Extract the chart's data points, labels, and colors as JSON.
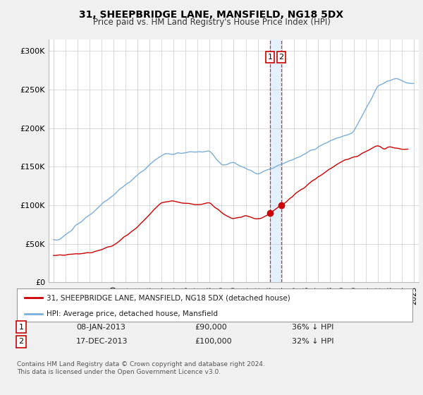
{
  "title": "31, SHEEPBRIDGE LANE, MANSFIELD, NG18 5DX",
  "subtitle": "Price paid vs. HM Land Registry's House Price Index (HPI)",
  "ylabel_ticks": [
    "£0",
    "£50K",
    "£100K",
    "£150K",
    "£200K",
    "£250K",
    "£300K"
  ],
  "ytick_values": [
    0,
    50000,
    100000,
    150000,
    200000,
    250000,
    300000
  ],
  "ylim": [
    0,
    315000
  ],
  "xlim_start": 1994.6,
  "xlim_end": 2025.4,
  "red_color": "#cc0000",
  "blue_color": "#7aaedb",
  "shade_color": "#ddeeff",
  "background_color": "#f0f0f0",
  "plot_bg_color": "#ffffff",
  "annotation1_date": "08-JAN-2013",
  "annotation1_price": "£90,000",
  "annotation1_hpi": "36% ↓ HPI",
  "annotation1_year": 2013.03,
  "annotation1_val": 90000,
  "annotation2_date": "17-DEC-2013",
  "annotation2_price": "£100,000",
  "annotation2_hpi": "32% ↓ HPI",
  "annotation2_year": 2013.96,
  "annotation2_val": 100000,
  "legend_line1": "31, SHEEPBRIDGE LANE, MANSFIELD, NG18 5DX (detached house)",
  "legend_line2": "HPI: Average price, detached house, Mansfield",
  "footnote": "Contains HM Land Registry data © Crown copyright and database right 2024.\nThis data is licensed under the Open Government Licence v3.0.",
  "shade_x1": 2013.03,
  "shade_x2": 2013.96
}
